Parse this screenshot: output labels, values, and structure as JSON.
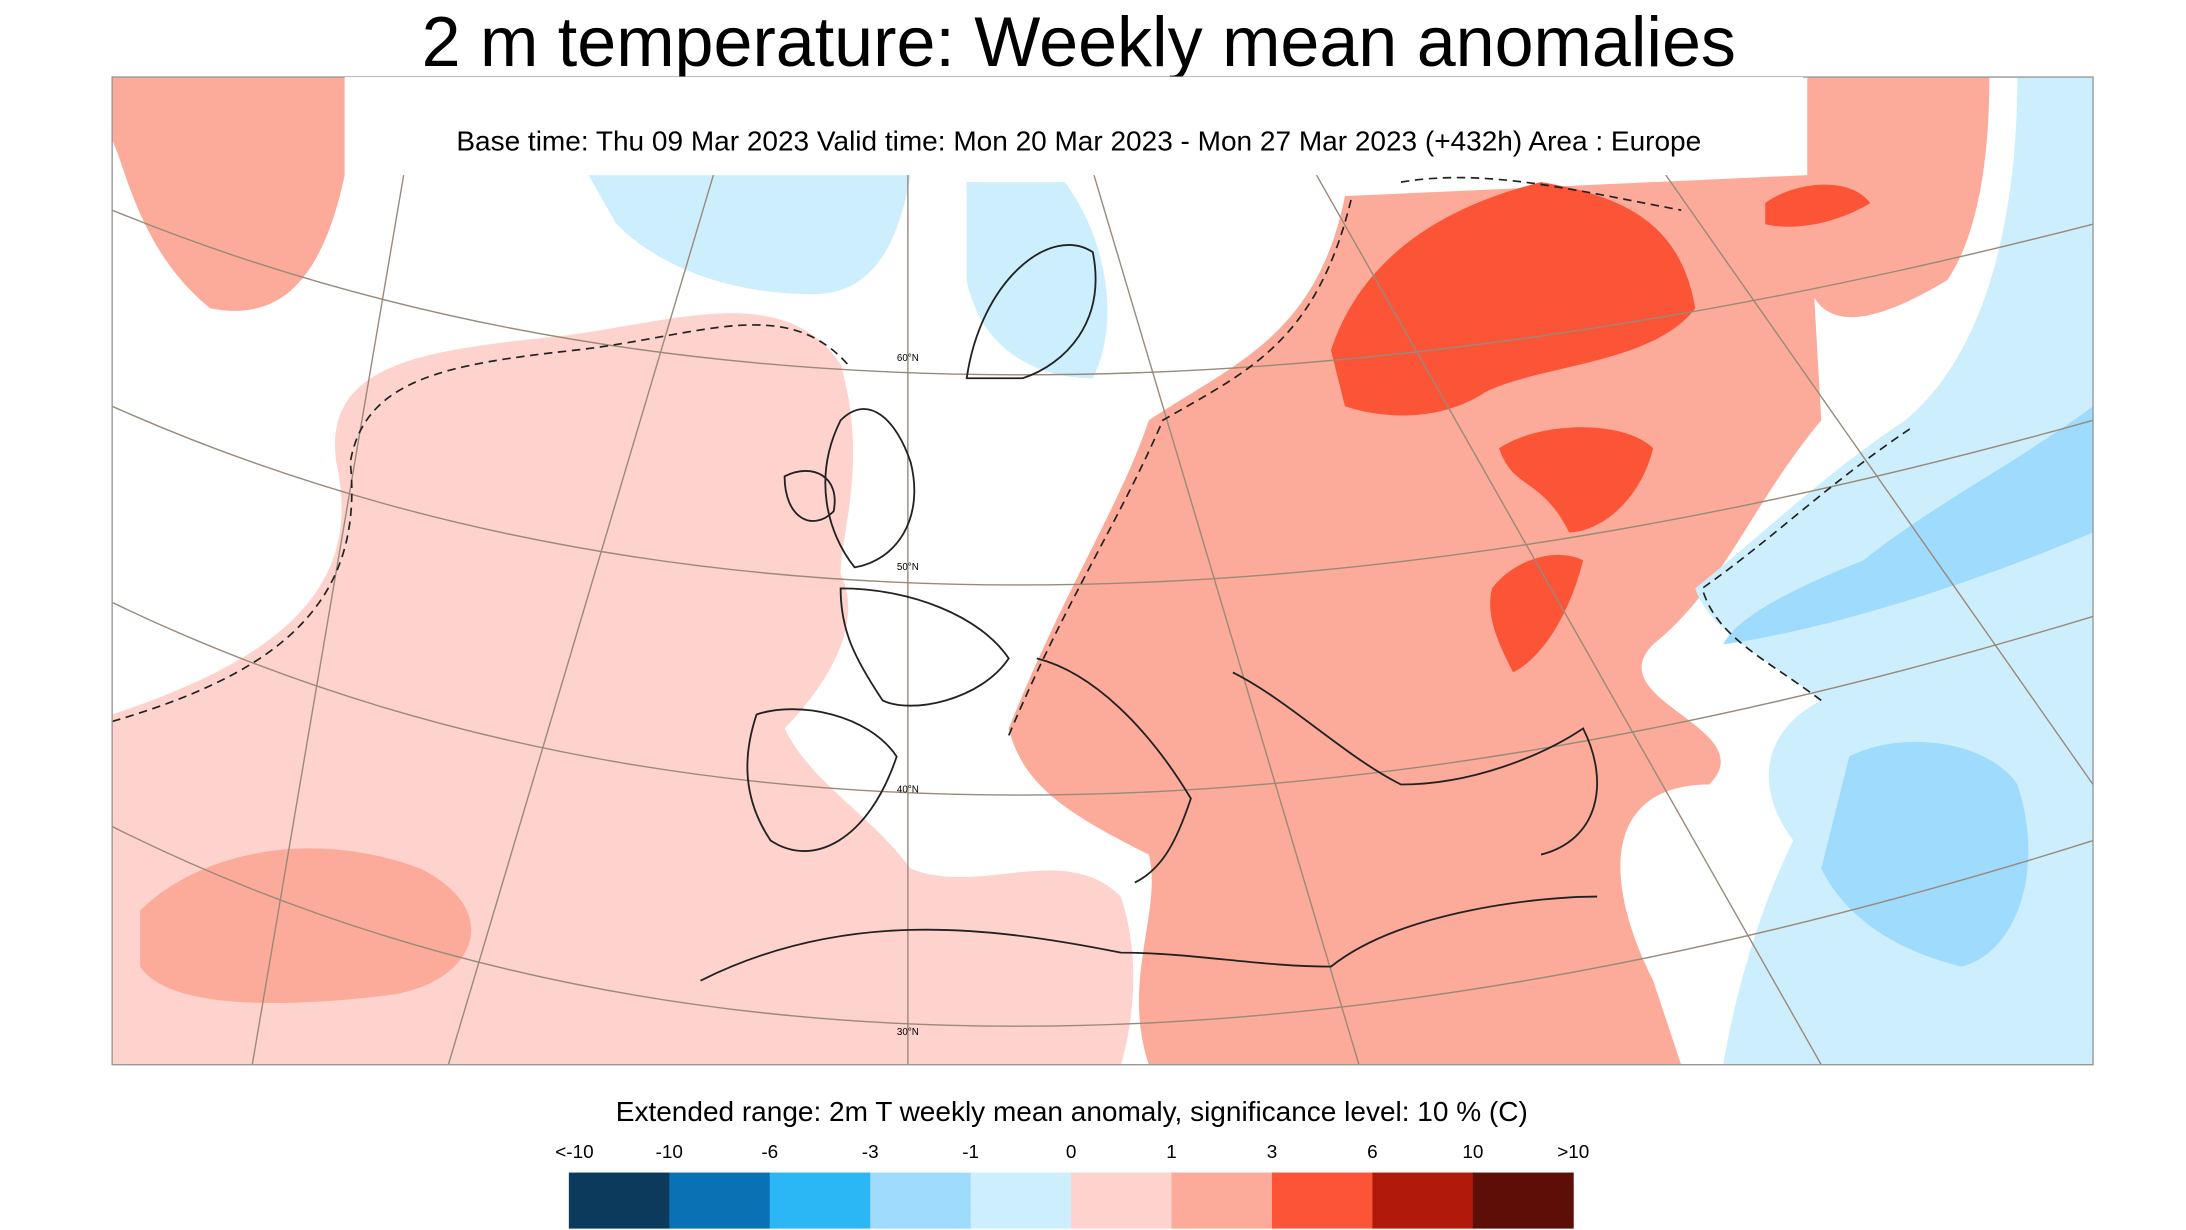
{
  "header": {
    "title": "2 m temperature: Weekly mean anomalies",
    "subtitle": "Base time: Thu 09 Mar 2023 Valid time: Mon 20 Mar 2023 - Mon 27 Mar 2023 (+432h) Area : Europe"
  },
  "map": {
    "latitude_labels": [
      "60°N",
      "50°N",
      "40°N",
      "30°N"
    ]
  },
  "legend": {
    "title": "Extended range: 2m T weekly mean anomaly, significance level: 10 % (C)",
    "labels": [
      "<-10",
      "-10",
      "-6",
      "-3",
      "-1",
      "0",
      "1",
      "3",
      "6",
      "10",
      ">10"
    ],
    "colors": [
      "#0b3a5c",
      "#0a71b4",
      "#2bb6f5",
      "#9edbfc",
      "#cdeefd",
      "#fed2cd",
      "#fcaa99",
      "#fb5437",
      "#b1190b",
      "#5d0e06"
    ]
  }
}
